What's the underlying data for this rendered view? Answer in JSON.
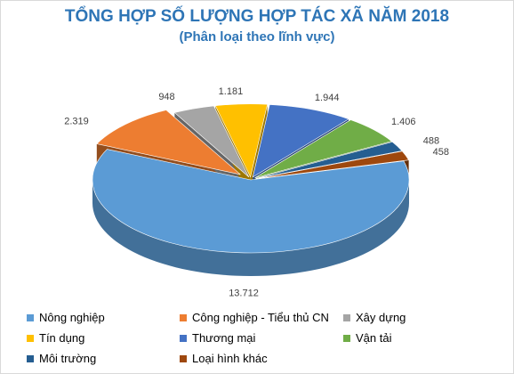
{
  "chart_data": {
    "type": "pie",
    "title": "TỔNG HỢP SỐ LƯỢNG HỢP TÁC XÃ NĂM 2018",
    "subtitle": "(Phân loại theo lĩnh vực)",
    "legend_position": "bottom",
    "slices": [
      {
        "label": "Nông nghiệp",
        "value": 13712,
        "display": "13.712",
        "color": "#5b9bd5"
      },
      {
        "label": "Công nghiệp - Tiểu thủ CN",
        "value": 2319,
        "display": "2.319",
        "color": "#ed7d31"
      },
      {
        "label": "Xây dựng",
        "value": 948,
        "display": "948",
        "color": "#a5a5a5"
      },
      {
        "label": "Tín dụng",
        "value": 1181,
        "display": "1.181",
        "color": "#ffc000"
      },
      {
        "label": "Thương mại",
        "value": 1944,
        "display": "1.944",
        "color": "#4472c4"
      },
      {
        "label": "Vận tải",
        "value": 1406,
        "display": "1.406",
        "color": "#70ad47"
      },
      {
        "label": "Môi trường",
        "value": 488,
        "display": "488",
        "color": "#255e91"
      },
      {
        "label": "Loại hình khác",
        "value": 458,
        "display": "458",
        "color": "#9e480e"
      }
    ]
  }
}
